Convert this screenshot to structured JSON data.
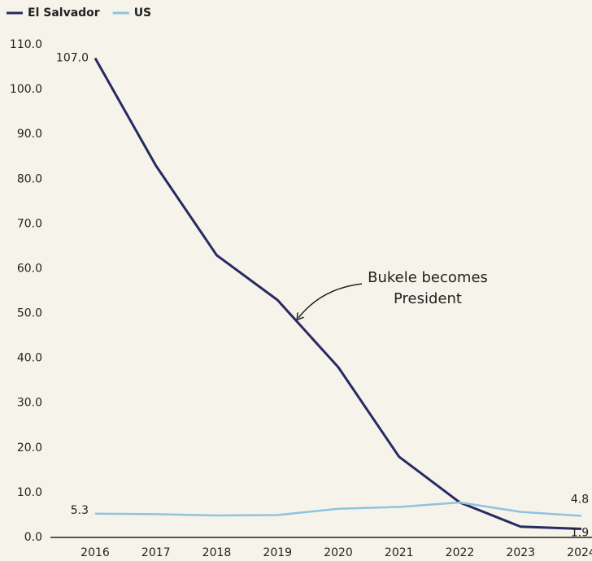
{
  "chart_data": {
    "type": "line",
    "categories": [
      "2016",
      "2017",
      "2018",
      "2019",
      "2020",
      "2021",
      "2022",
      "2023",
      "2024"
    ],
    "series": [
      {
        "name": "El Salvador",
        "color": "#272a63",
        "values": [
          107.0,
          83,
          63,
          53,
          38,
          18,
          7.8,
          2.4,
          1.9
        ],
        "value_labels": [
          "107.0",
          null,
          null,
          null,
          null,
          null,
          null,
          null,
          "1.9"
        ]
      },
      {
        "name": "US",
        "color": "#8fc3df",
        "values": [
          5.3,
          5.2,
          4.9,
          5.0,
          6.4,
          6.8,
          7.8,
          5.7,
          4.8
        ],
        "value_labels": [
          "5.3",
          null,
          null,
          null,
          null,
          null,
          null,
          null,
          "4.8"
        ]
      }
    ],
    "ylim": [
      0,
      110
    ],
    "yticks": [
      {
        "value": 0,
        "label": "0.0"
      },
      {
        "value": 10,
        "label": "10.0"
      },
      {
        "value": 20,
        "label": "20.0"
      },
      {
        "value": 30,
        "label": "30.0"
      },
      {
        "value": 40,
        "label": "40.0"
      },
      {
        "value": 50,
        "label": "50.0"
      },
      {
        "value": 60,
        "label": "60.0"
      },
      {
        "value": 70,
        "label": "70.0"
      },
      {
        "value": 80,
        "label": "80.0"
      },
      {
        "value": 90,
        "label": "90.0"
      },
      {
        "value": 100,
        "label": "100.0"
      },
      {
        "value": 110,
        "label": "110.0"
      }
    ],
    "grid": false,
    "legend": "top-left",
    "annotation": {
      "lines": [
        "Bukele becomes",
        "President"
      ]
    }
  }
}
